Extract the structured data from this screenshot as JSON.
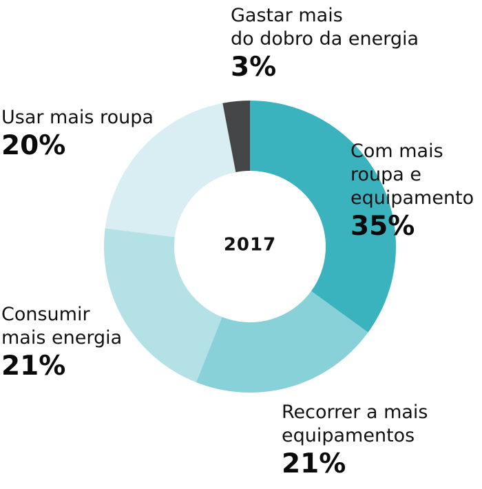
{
  "chart_data": {
    "type": "pie",
    "subtype": "donut",
    "center_label": "2017",
    "slices": [
      {
        "label": "Com mais\nroupa e\nequipamento",
        "value": 35,
        "value_label": "35%",
        "color": "#3ab3bf"
      },
      {
        "label": "Recorrer a mais\nequipamentos",
        "value": 21,
        "value_label": "21%",
        "color": "#88d1d8"
      },
      {
        "label": "Consumir\nmais energia",
        "value": 21,
        "value_label": "21%",
        "color": "#b3e1e6"
      },
      {
        "label": "Usar mais roupa",
        "value": 20,
        "value_label": "20%",
        "color": "#d9eef2"
      },
      {
        "label": "Gastar mais\ndo dobro da energia",
        "value": 3,
        "value_label": "3%",
        "color": "#444546"
      }
    ],
    "start_angle_deg": 0,
    "direction": "clockwise",
    "legend": "none"
  }
}
